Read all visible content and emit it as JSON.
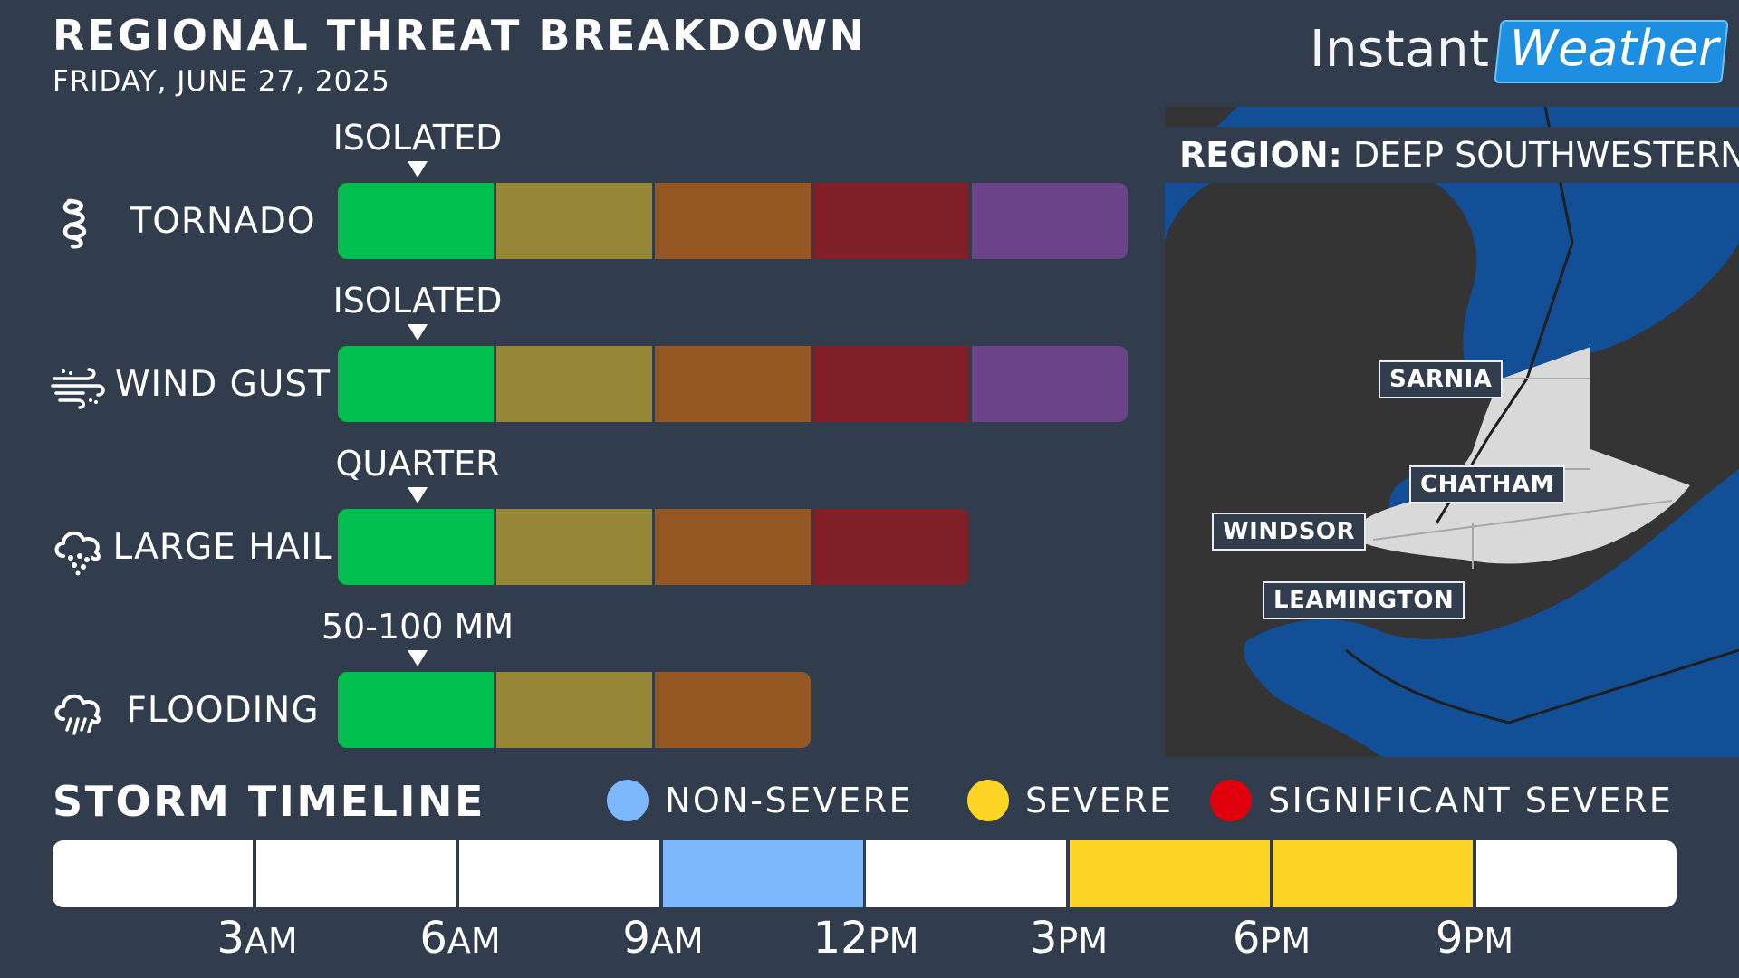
{
  "header": {
    "title": "REGIONAL THREAT BREAKDOWN",
    "date": "FRIDAY, JUNE 27, 2025"
  },
  "logo": {
    "part1": "Instant",
    "part2": "Weather"
  },
  "threat_colors": [
    "#00bf4f",
    "#968637",
    "#955824",
    "#811f27",
    "#6b4389"
  ],
  "threats": [
    {
      "label": "TORNADO",
      "icon": "tornado-icon",
      "marker": "ISOLATED",
      "marker_level": 1,
      "levels": 5
    },
    {
      "label": "WIND GUST",
      "icon": "wind-icon",
      "marker": "ISOLATED",
      "marker_level": 1,
      "levels": 5
    },
    {
      "label": "LARGE HAIL",
      "icon": "hail-cloud-icon",
      "marker": "QUARTER",
      "marker_level": 1,
      "levels": 4
    },
    {
      "label": "FLOODING",
      "icon": "rain-cloud-icon",
      "marker": "50-100 MM",
      "marker_level": 1,
      "levels": 3
    }
  ],
  "region": {
    "key": "REGION:",
    "value": "DEEP SOUTHWESTERN"
  },
  "cities": [
    "SARNIA",
    "CHATHAM",
    "WINDSOR",
    "LEAMINGTON"
  ],
  "timeline": {
    "title": "STORM TIMELINE",
    "legend": [
      {
        "label": "NON-SEVERE",
        "color": "#7cb8fb"
      },
      {
        "label": "SEVERE",
        "color": "#fed525"
      },
      {
        "label": "SIGNIFICANT SEVERE",
        "color": "#e0000c"
      }
    ],
    "segments": [
      "none",
      "none",
      "none",
      "non-severe",
      "none",
      "severe",
      "severe",
      "none"
    ],
    "ticks": [
      {
        "num": "3",
        "ampm": "AM"
      },
      {
        "num": "6",
        "ampm": "AM"
      },
      {
        "num": "9",
        "ampm": "AM"
      },
      {
        "num": "12",
        "ampm": "PM"
      },
      {
        "num": "3",
        "ampm": "PM"
      },
      {
        "num": "6",
        "ampm": "PM"
      },
      {
        "num": "9",
        "ampm": "PM"
      }
    ]
  }
}
